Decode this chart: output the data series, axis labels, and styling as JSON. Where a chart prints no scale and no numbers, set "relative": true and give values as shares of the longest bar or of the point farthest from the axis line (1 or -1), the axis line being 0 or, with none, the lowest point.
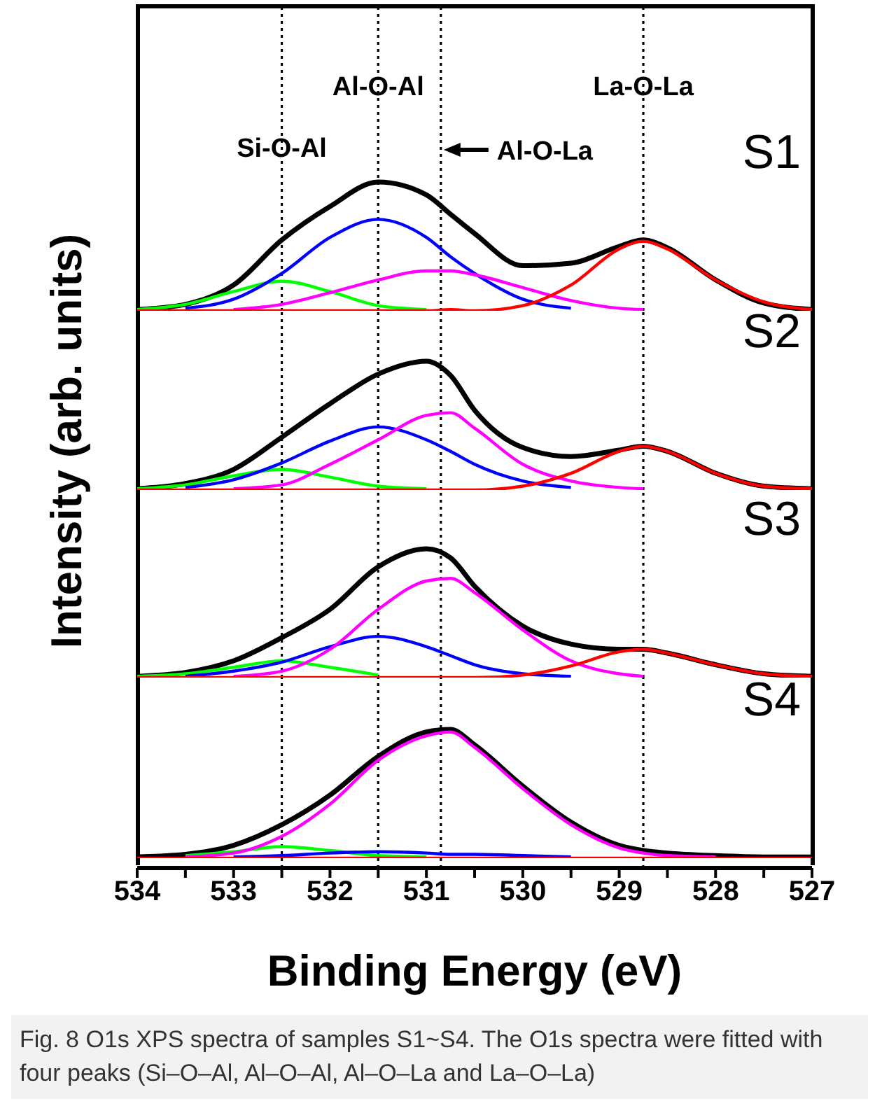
{
  "chart_data": [
    {
      "type": "line",
      "relative": true,
      "tick_labels": false,
      "ylabel": "Intensity (arb. units)",
      "xlim": [
        534,
        527
      ],
      "annotations": [
        "S1"
      ],
      "ref_lines": [
        {
          "axis": "x",
          "value": 532.5,
          "label": "Si-O-Al",
          "line_style": "dotted",
          "color": "#000000"
        },
        {
          "axis": "x",
          "value": 531.5,
          "label": "Al-O-Al",
          "line_style": "dotted",
          "color": "#000000"
        },
        {
          "axis": "x",
          "value": 530.85,
          "label": "Al-O-La",
          "line_style": "dotted",
          "color": "#000000"
        },
        {
          "axis": "x",
          "value": 528.75,
          "label": "La-O-La",
          "line_style": "dotted",
          "color": "#000000"
        }
      ],
      "x": [
        534,
        533.5,
        533,
        532.5,
        532,
        531.5,
        531,
        530.75,
        530.5,
        530,
        529.5,
        529,
        528.75,
        528.5,
        528,
        527.5,
        527
      ],
      "series": [
        {
          "color": "#000000",
          "values": [
            0.01,
            0.05,
            0.2,
            0.55,
            0.81,
            1,
            0.9,
            0.75,
            0.6,
            0.35,
            0.37,
            0.5,
            0.55,
            0.49,
            0.24,
            0.06,
            0.01
          ]
        },
        {
          "color": "#00ff00",
          "values": [
            0.01,
            0.05,
            0.15,
            0.23,
            0.15,
            0.04,
            0.01,
            null,
            null,
            null,
            null,
            null,
            null,
            null,
            null,
            null,
            null
          ]
        },
        {
          "color": "#0000ff",
          "values": [
            null,
            0.02,
            0.09,
            0.29,
            0.57,
            0.71,
            0.57,
            0.42,
            0.29,
            0.09,
            0.02,
            null,
            null,
            null,
            null,
            null,
            null
          ]
        },
        {
          "color": "#ff00ff",
          "values": [
            null,
            null,
            0.01,
            0.05,
            0.14,
            0.24,
            0.31,
            0.31,
            0.28,
            0.18,
            0.08,
            0.02,
            0.01,
            null,
            null,
            null,
            null
          ]
        },
        {
          "color": "#ff0000",
          "values": [
            0,
            0,
            0,
            0,
            0,
            0,
            0,
            0.01,
            0,
            0.04,
            0.2,
            0.48,
            0.54,
            0.48,
            0.24,
            0.07,
            0.01
          ]
        }
      ]
    },
    {
      "type": "line",
      "relative": true,
      "tick_labels": false,
      "xlim": [
        534,
        527
      ],
      "annotations": [
        "S2"
      ],
      "ref_lines": [
        {
          "axis": "x",
          "value": 532.5,
          "line_style": "dotted",
          "color": "#000000"
        },
        {
          "axis": "x",
          "value": 531.5,
          "line_style": "dotted",
          "color": "#000000"
        },
        {
          "axis": "x",
          "value": 530.85,
          "line_style": "dotted",
          "color": "#000000"
        },
        {
          "axis": "x",
          "value": 528.75,
          "line_style": "dotted",
          "color": "#000000"
        }
      ],
      "x": [
        534,
        533.5,
        533,
        532.5,
        532,
        531.5,
        531,
        530.75,
        530.5,
        530,
        529.5,
        529,
        528.75,
        528.5,
        528,
        527.5,
        527
      ],
      "series": [
        {
          "color": "#000000",
          "values": [
            0.01,
            0.05,
            0.16,
            0.41,
            0.67,
            0.9,
            1,
            0.89,
            0.62,
            0.33,
            0.26,
            0.31,
            0.34,
            0.3,
            0.13,
            0.03,
            0.01
          ]
        },
        {
          "color": "#00ff00",
          "values": [
            0.01,
            0.04,
            0.11,
            0.16,
            0.1,
            0.03,
            0.01,
            null,
            null,
            null,
            null,
            null,
            null,
            null,
            null,
            null,
            null
          ]
        },
        {
          "color": "#0000ff",
          "values": [
            null,
            0.02,
            0.08,
            0.21,
            0.38,
            0.49,
            0.39,
            0.3,
            0.2,
            0.07,
            0.02,
            null,
            null,
            null,
            null,
            null,
            null
          ]
        },
        {
          "color": "#ff00ff",
          "values": [
            null,
            null,
            0.01,
            0.04,
            0.2,
            0.39,
            0.58,
            0.6,
            0.48,
            0.2,
            0.07,
            0.02,
            0.01,
            null,
            null,
            null,
            null
          ]
        },
        {
          "color": "#ff0000",
          "values": [
            0,
            0,
            0,
            0,
            0,
            0,
            0,
            0,
            0,
            0.03,
            0.13,
            0.3,
            0.34,
            0.3,
            0.13,
            0.03,
            0.01
          ]
        }
      ]
    },
    {
      "type": "line",
      "relative": true,
      "tick_labels": false,
      "xlim": [
        534,
        527
      ],
      "annotations": [
        "S3"
      ],
      "ref_lines": [
        {
          "axis": "x",
          "value": 532.5,
          "line_style": "dotted",
          "color": "#000000"
        },
        {
          "axis": "x",
          "value": 531.5,
          "line_style": "dotted",
          "color": "#000000"
        },
        {
          "axis": "x",
          "value": 530.85,
          "line_style": "dotted",
          "color": "#000000"
        },
        {
          "axis": "x",
          "value": 528.75,
          "line_style": "dotted",
          "color": "#000000"
        }
      ],
      "x": [
        534,
        533.5,
        533,
        532.5,
        532,
        531.5,
        531,
        530.75,
        530.5,
        530,
        529.5,
        529,
        528.75,
        528.5,
        528,
        527.5,
        527
      ],
      "series": [
        {
          "color": "#000000",
          "values": [
            0.01,
            0.04,
            0.13,
            0.31,
            0.53,
            0.86,
            1,
            0.93,
            0.71,
            0.4,
            0.26,
            0.22,
            0.22,
            0.19,
            0.1,
            0.03,
            0.01
          ]
        },
        {
          "color": "#00ff00",
          "values": [
            0.01,
            0.03,
            0.08,
            0.13,
            0.08,
            0.02,
            null,
            null,
            null,
            null,
            null,
            null,
            null,
            null,
            null,
            null,
            null
          ]
        },
        {
          "color": "#0000ff",
          "values": [
            null,
            0.01,
            0.05,
            0.12,
            0.24,
            0.32,
            0.24,
            0.17,
            0.1,
            0.03,
            0.01,
            null,
            null,
            null,
            null,
            null,
            null
          ]
        },
        {
          "color": "#ff00ff",
          "values": [
            null,
            null,
            0.01,
            0.05,
            0.22,
            0.53,
            0.75,
            0.77,
            0.66,
            0.37,
            0.13,
            0.03,
            0.01,
            null,
            null,
            null,
            null
          ]
        },
        {
          "color": "#ff0000",
          "values": [
            0,
            0,
            0,
            0,
            0,
            0,
            0,
            0,
            0,
            0.02,
            0.09,
            0.2,
            0.22,
            0.19,
            0.1,
            0.03,
            0.01
          ]
        }
      ]
    },
    {
      "type": "line",
      "relative": true,
      "tick_labels": "x",
      "xlabel": "Binding Energy (eV)",
      "xlim": [
        534,
        527
      ],
      "xticks": [
        534,
        {
          "value": 533.5,
          "label": null
        },
        533,
        {
          "value": 532.5,
          "label": null
        },
        532,
        {
          "value": 531.5,
          "label": null
        },
        531,
        {
          "value": 530.5,
          "label": null
        },
        530,
        {
          "value": 529.5,
          "label": null
        },
        529,
        {
          "value": 528.5,
          "label": null
        },
        528,
        {
          "value": 527.5,
          "label": null
        },
        527
      ],
      "annotations": [
        "S4",
        "Fig. 8 O1s XPS spectra of samples S1~S4. The O1s spectra were fitted with four peaks (Si–O–Al, Al–O–Al, Al–O–La and La–O–La)"
      ],
      "ref_lines": [
        {
          "axis": "x",
          "value": 532.5,
          "line_style": "dotted",
          "color": "#000000"
        },
        {
          "axis": "x",
          "value": 531.5,
          "line_style": "dotted",
          "color": "#000000"
        },
        {
          "axis": "x",
          "value": 530.85,
          "line_style": "dotted",
          "color": "#000000"
        },
        {
          "axis": "x",
          "value": 528.75,
          "line_style": "dotted",
          "color": "#000000"
        }
      ],
      "x": [
        534,
        533.5,
        533,
        532.5,
        532,
        531.5,
        531,
        530.75,
        530.5,
        530,
        529.5,
        529,
        528.75,
        528.5,
        528,
        527.5,
        527
      ],
      "series": [
        {
          "color": "#000000",
          "values": [
            0.01,
            0.03,
            0.1,
            0.26,
            0.49,
            0.79,
            0.98,
            1,
            0.88,
            0.56,
            0.28,
            0.1,
            0.06,
            0.04,
            0.02,
            0.01,
            0.01
          ]
        },
        {
          "color": "#00ff00",
          "values": [
            null,
            0.02,
            0.05,
            0.09,
            0.06,
            0.02,
            0.01,
            null,
            null,
            null,
            null,
            null,
            null,
            null,
            null,
            null,
            null
          ]
        },
        {
          "color": "#0000ff",
          "values": [
            null,
            null,
            0.01,
            0.02,
            0.04,
            0.05,
            0.04,
            0.03,
            0.03,
            0.02,
            0.01,
            null,
            null,
            null,
            null,
            null,
            null
          ]
        },
        {
          "color": "#ff00ff",
          "values": [
            null,
            0.01,
            0.04,
            0.17,
            0.42,
            0.76,
            0.95,
            0.98,
            0.86,
            0.54,
            0.26,
            0.08,
            0.04,
            0.02,
            0.01,
            null,
            null
          ]
        },
        {
          "color": "#ff0000",
          "values": [
            0,
            0,
            0,
            0,
            0,
            0,
            0,
            0,
            0,
            0,
            0,
            0,
            0,
            0,
            0,
            0,
            0
          ]
        }
      ]
    }
  ]
}
